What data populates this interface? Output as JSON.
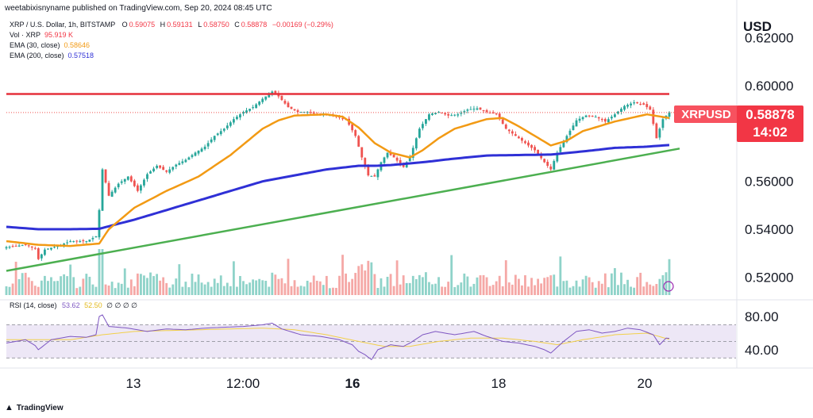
{
  "publisher": "weetabixisnyname published on TradingView.com, Sep 20, 2024 08:45 UTC",
  "header": {
    "symbol": "XRP / U.S. Dollar, 1h, BITSTAMP",
    "o_label": "O",
    "o": "0.59075",
    "h_label": "H",
    "h": "0.59131",
    "l_label": "L",
    "l": "0.58750",
    "c_label": "C",
    "c": "0.58878",
    "chg": "−0.00169 (−0.29%)",
    "vol_label": "Vol · XRP",
    "vol": "95.919 K",
    "ema30_label": "EMA (30, close)",
    "ema30": "0.58646",
    "ema200_label": "EMA (200, close)",
    "ema200": "0.57518"
  },
  "currency": "USD",
  "price_tag": "XRPUSD",
  "last_price": "0.58878",
  "countdown": "14:02",
  "rsi_header": {
    "label": "RSI (14, close)",
    "value": "53.62",
    "ma": "52.50",
    "dots": "∅ ∅ ∅ ∅"
  },
  "branding": "TradingView",
  "colors": {
    "up": "#26a69a",
    "down": "#ef5350",
    "vol_up": "#8fd3c9",
    "vol_down": "#f5a8a6",
    "ema30": "#f29a14",
    "ema200": "#2f30d6",
    "resistance": "#e5303b",
    "support": "#4caf50",
    "rsi": "#7e57c2",
    "rsi_ma": "#f2d04a",
    "rsi_band": "#ede7f6"
  },
  "chart_data": {
    "type": "candlestick",
    "price_axis": {
      "ticks": [
        "0.62000",
        "0.60000",
        "0.56000",
        "0.54000",
        "0.52000"
      ],
      "ylim": [
        0.5105,
        0.6275
      ]
    },
    "x_axis": {
      "labels": [
        "13",
        "12:00",
        "16",
        "18",
        "20"
      ]
    },
    "rsi_axis": {
      "ticks": [
        "80.00",
        "40.00"
      ],
      "ylim": [
        18,
        100
      ],
      "upper_band": 70,
      "lower_band": 30
    },
    "resistance_line": {
      "y0": 0.5965,
      "y1": 0.5965
    },
    "support_line": {
      "y0": 0.5226,
      "y1": 0.5737
    },
    "close_keypoints": [
      [
        0,
        0.5325
      ],
      [
        6,
        0.5335
      ],
      [
        9,
        0.5318
      ],
      [
        10,
        0.5275
      ],
      [
        12,
        0.5315
      ],
      [
        16,
        0.533
      ],
      [
        20,
        0.535
      ],
      [
        25,
        0.535
      ],
      [
        28,
        0.537
      ],
      [
        29,
        0.548
      ],
      [
        30,
        0.565
      ],
      [
        32,
        0.554
      ],
      [
        35,
        0.559
      ],
      [
        38,
        0.562
      ],
      [
        41,
        0.556
      ],
      [
        44,
        0.563
      ],
      [
        47,
        0.5665
      ],
      [
        50,
        0.564
      ],
      [
        53,
        0.567
      ],
      [
        56,
        0.569
      ],
      [
        59,
        0.572
      ],
      [
        62,
        0.5745
      ],
      [
        65,
        0.579
      ],
      [
        68,
        0.582
      ],
      [
        71,
        0.586
      ],
      [
        74,
        0.589
      ],
      [
        77,
        0.591
      ],
      [
        80,
        0.5945
      ],
      [
        83,
        0.5975
      ],
      [
        85,
        0.5955
      ],
      [
        88,
        0.591
      ],
      [
        91,
        0.589
      ],
      [
        94,
        0.589
      ],
      [
        97,
        0.588
      ],
      [
        100,
        0.588
      ],
      [
        103,
        0.587
      ],
      [
        106,
        0.586
      ],
      [
        109,
        0.579
      ],
      [
        111,
        0.57
      ],
      [
        113,
        0.5625
      ],
      [
        115,
        0.562
      ],
      [
        117,
        0.568
      ],
      [
        119,
        0.572
      ],
      [
        121,
        0.57
      ],
      [
        124,
        0.566
      ],
      [
        126,
        0.57
      ],
      [
        129,
        0.582
      ],
      [
        132,
        0.588
      ],
      [
        135,
        0.589
      ],
      [
        138,
        0.5875
      ],
      [
        141,
        0.588
      ],
      [
        144,
        0.59
      ],
      [
        147,
        0.5905
      ],
      [
        150,
        0.589
      ],
      [
        153,
        0.588
      ],
      [
        156,
        0.582
      ],
      [
        159,
        0.579
      ],
      [
        162,
        0.576
      ],
      [
        165,
        0.573
      ],
      [
        168,
        0.568
      ],
      [
        170,
        0.565
      ],
      [
        172,
        0.572
      ],
      [
        175,
        0.579
      ],
      [
        178,
        0.5855
      ],
      [
        181,
        0.5875
      ],
      [
        184,
        0.587
      ],
      [
        187,
        0.585
      ],
      [
        190,
        0.588
      ],
      [
        193,
        0.5915
      ],
      [
        196,
        0.593
      ],
      [
        199,
        0.592
      ],
      [
        201,
        0.59
      ],
      [
        203,
        0.578
      ],
      [
        205,
        0.586
      ],
      [
        207,
        0.5888
      ]
    ],
    "ema30_keypoints": [
      [
        0,
        0.535
      ],
      [
        10,
        0.5335
      ],
      [
        20,
        0.533
      ],
      [
        29,
        0.534
      ],
      [
        32,
        0.54
      ],
      [
        40,
        0.549
      ],
      [
        50,
        0.556
      ],
      [
        60,
        0.562
      ],
      [
        70,
        0.571
      ],
      [
        80,
        0.582
      ],
      [
        85,
        0.5855
      ],
      [
        90,
        0.5875
      ],
      [
        100,
        0.588
      ],
      [
        105,
        0.587
      ],
      [
        110,
        0.5825
      ],
      [
        115,
        0.576
      ],
      [
        120,
        0.572
      ],
      [
        126,
        0.57
      ],
      [
        130,
        0.573
      ],
      [
        135,
        0.578
      ],
      [
        140,
        0.582
      ],
      [
        150,
        0.586
      ],
      [
        155,
        0.5865
      ],
      [
        160,
        0.583
      ],
      [
        165,
        0.579
      ],
      [
        170,
        0.575
      ],
      [
        175,
        0.577
      ],
      [
        180,
        0.581
      ],
      [
        190,
        0.585
      ],
      [
        200,
        0.588
      ],
      [
        207,
        0.58646
      ]
    ],
    "ema200_keypoints": [
      [
        0,
        0.541
      ],
      [
        10,
        0.54
      ],
      [
        20,
        0.54
      ],
      [
        29,
        0.5402
      ],
      [
        40,
        0.544
      ],
      [
        50,
        0.548
      ],
      [
        60,
        0.552
      ],
      [
        70,
        0.556
      ],
      [
        80,
        0.56
      ],
      [
        90,
        0.5625
      ],
      [
        100,
        0.565
      ],
      [
        110,
        0.5665
      ],
      [
        115,
        0.5665
      ],
      [
        120,
        0.5668
      ],
      [
        130,
        0.568
      ],
      [
        140,
        0.5695
      ],
      [
        150,
        0.5708
      ],
      [
        160,
        0.571
      ],
      [
        170,
        0.5712
      ],
      [
        180,
        0.5725
      ],
      [
        190,
        0.574
      ],
      [
        200,
        0.5745
      ],
      [
        207,
        0.57518
      ]
    ],
    "rsi_keypoints": [
      [
        0,
        48
      ],
      [
        6,
        52
      ],
      [
        9,
        45
      ],
      [
        10,
        40
      ],
      [
        14,
        52
      ],
      [
        20,
        56
      ],
      [
        25,
        55
      ],
      [
        28,
        58
      ],
      [
        29,
        80
      ],
      [
        30,
        82
      ],
      [
        32,
        68
      ],
      [
        38,
        66
      ],
      [
        44,
        62
      ],
      [
        50,
        65
      ],
      [
        56,
        64
      ],
      [
        62,
        66
      ],
      [
        68,
        67
      ],
      [
        74,
        68
      ],
      [
        80,
        70
      ],
      [
        83,
        72
      ],
      [
        86,
        65
      ],
      [
        92,
        58
      ],
      [
        98,
        56
      ],
      [
        104,
        52
      ],
      [
        108,
        46
      ],
      [
        110,
        38
      ],
      [
        112,
        34
      ],
      [
        114,
        28
      ],
      [
        116,
        40
      ],
      [
        120,
        46
      ],
      [
        124,
        44
      ],
      [
        126,
        48
      ],
      [
        130,
        58
      ],
      [
        134,
        62
      ],
      [
        140,
        58
      ],
      [
        146,
        62
      ],
      [
        150,
        56
      ],
      [
        155,
        50
      ],
      [
        160,
        48
      ],
      [
        165,
        44
      ],
      [
        168,
        40
      ],
      [
        170,
        36
      ],
      [
        174,
        50
      ],
      [
        178,
        62
      ],
      [
        182,
        64
      ],
      [
        186,
        60
      ],
      [
        190,
        62
      ],
      [
        194,
        66
      ],
      [
        198,
        64
      ],
      [
        202,
        58
      ],
      [
        204,
        46
      ],
      [
        206,
        54
      ],
      [
        207,
        53.62
      ]
    ],
    "rsi_ma_keypoints": [
      [
        0,
        52
      ],
      [
        20,
        52
      ],
      [
        30,
        58
      ],
      [
        40,
        62
      ],
      [
        60,
        64
      ],
      [
        80,
        66
      ],
      [
        90,
        64
      ],
      [
        100,
        58
      ],
      [
        110,
        50
      ],
      [
        118,
        44
      ],
      [
        126,
        44
      ],
      [
        135,
        50
      ],
      [
        145,
        54
      ],
      [
        155,
        54
      ],
      [
        165,
        50
      ],
      [
        172,
        46
      ],
      [
        180,
        52
      ],
      [
        190,
        58
      ],
      [
        200,
        60
      ],
      [
        207,
        52.5
      ]
    ]
  }
}
